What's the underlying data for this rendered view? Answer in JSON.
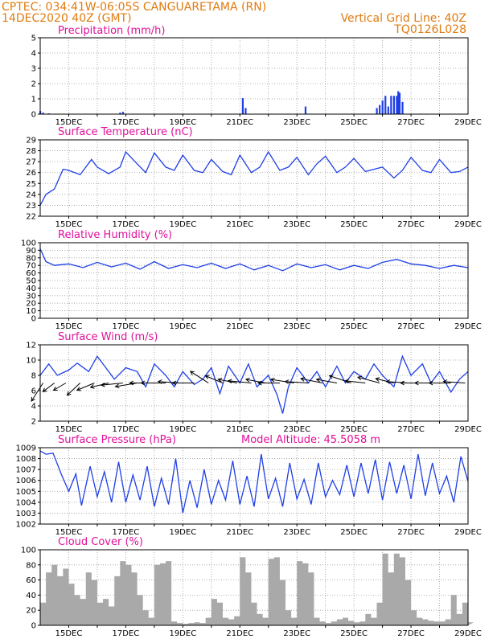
{
  "header": {
    "line1": "CPTEC:   034:41W-06:05S   CANGUARETAMA (RN)",
    "line2": "14DEC2020 40Z (GMT)",
    "grid_note": "Vertical Grid Line: 40Z",
    "code": "TQ0126L028"
  },
  "x_ticks": [
    "15DEC",
    "17DEC",
    "19DEC",
    "21DEC",
    "23DEC",
    "25DEC",
    "27DEC",
    "29DEC"
  ],
  "colors": {
    "series": "#1f3fe6",
    "cloud": "#a9a9a9",
    "title": "#e0109a",
    "header": "#e07b10"
  },
  "chart_data": [
    {
      "id": "precip",
      "type": "bar",
      "title": "Precipitation (mm/h)",
      "ylim": [
        0,
        5
      ],
      "yticks": [
        "0",
        "1",
        "2",
        "3",
        "4",
        "5"
      ],
      "x": [
        14.0,
        14.1,
        14.3,
        16.8,
        16.9,
        21.1,
        21.2,
        23.3,
        25.8,
        25.9,
        26.0,
        26.1,
        26.2,
        26.3,
        26.4,
        26.5,
        26.55,
        26.6,
        26.7
      ],
      "values": [
        0.2,
        0.1,
        0.05,
        0.1,
        0.15,
        1.05,
        0.4,
        0.5,
        0.4,
        0.6,
        0.9,
        1.2,
        0.5,
        1.2,
        1.2,
        1.2,
        1.5,
        1.4,
        0.8
      ]
    },
    {
      "id": "temp",
      "type": "line",
      "title": "Surface Temperature (nC)",
      "ylim": [
        22,
        29
      ],
      "yticks": [
        "22",
        "23",
        "24",
        "25",
        "26",
        "27",
        "28",
        "29"
      ],
      "x": [
        14.0,
        14.2,
        14.5,
        14.8,
        15.0,
        15.4,
        15.8,
        16.0,
        16.4,
        16.8,
        17.0,
        17.4,
        17.7,
        18.0,
        18.4,
        18.7,
        19.0,
        19.4,
        19.7,
        20.0,
        20.4,
        20.7,
        21.0,
        21.4,
        21.7,
        22.0,
        22.4,
        22.7,
        23.0,
        23.4,
        23.7,
        24.0,
        24.4,
        24.7,
        25.0,
        25.4,
        25.7,
        26.0,
        26.4,
        26.7,
        27.0,
        27.4,
        27.7,
        28.0,
        28.4,
        28.7,
        29.0
      ],
      "values": [
        23.0,
        24.0,
        24.5,
        26.3,
        26.2,
        25.8,
        27.2,
        26.5,
        25.9,
        26.5,
        27.9,
        26.8,
        26.0,
        27.8,
        26.5,
        26.2,
        27.6,
        26.2,
        26.0,
        27.2,
        26.1,
        25.8,
        27.6,
        26.0,
        26.5,
        27.9,
        26.2,
        26.5,
        27.4,
        25.8,
        26.8,
        27.5,
        26.0,
        26.5,
        27.3,
        26.1,
        26.3,
        26.5,
        25.5,
        26.2,
        27.4,
        26.2,
        26.0,
        27.2,
        26.0,
        26.1,
        26.5
      ]
    },
    {
      "id": "rh",
      "type": "line",
      "title": "Relative Humidity (%)",
      "ylim": [
        0,
        100
      ],
      "yticks": [
        "0",
        "10",
        "20",
        "30",
        "40",
        "50",
        "60",
        "70",
        "80",
        "90",
        "100"
      ],
      "x": [
        14.0,
        14.2,
        14.5,
        15.0,
        15.5,
        16.0,
        16.5,
        17.0,
        17.5,
        18.0,
        18.5,
        19.0,
        19.5,
        20.0,
        20.5,
        21.0,
        21.5,
        22.0,
        22.5,
        23.0,
        23.5,
        24.0,
        24.5,
        25.0,
        25.5,
        26.0,
        26.5,
        27.0,
        27.5,
        28.0,
        28.5,
        29.0
      ],
      "values": [
        92,
        75,
        70,
        72,
        67,
        74,
        68,
        73,
        65,
        75,
        66,
        71,
        67,
        73,
        66,
        72,
        64,
        70,
        63,
        72,
        67,
        71,
        64,
        70,
        66,
        74,
        78,
        72,
        70,
        66,
        70,
        67
      ]
    },
    {
      "id": "wind",
      "type": "line",
      "title": "Surface Wind (m/s)",
      "ylim": [
        2,
        12
      ],
      "yticks": [
        "2",
        "4",
        "6",
        "8",
        "10",
        "12"
      ],
      "x": [
        14.0,
        14.3,
        14.6,
        15.0,
        15.3,
        15.7,
        16.0,
        16.3,
        16.6,
        17.0,
        17.4,
        17.7,
        18.0,
        18.4,
        18.7,
        19.0,
        19.4,
        19.7,
        20.0,
        20.3,
        20.6,
        21.0,
        21.3,
        21.6,
        22.0,
        22.3,
        22.5,
        22.7,
        23.0,
        23.4,
        23.7,
        24.0,
        24.4,
        24.7,
        25.0,
        25.4,
        25.7,
        26.0,
        26.4,
        26.7,
        27.0,
        27.4,
        27.7,
        28.0,
        28.4,
        28.7,
        29.0
      ],
      "values": [
        8,
        9.5,
        8,
        8.7,
        9.6,
        8.5,
        10.5,
        9,
        7.5,
        9,
        8.5,
        6.5,
        9.5,
        8,
        6.5,
        8.5,
        6.8,
        7.5,
        9,
        5.6,
        9.2,
        7,
        9.5,
        6.5,
        8,
        5.5,
        3,
        6.5,
        9,
        7,
        8.5,
        6.5,
        9.2,
        7,
        8.5,
        7.5,
        9.5,
        8,
        6.5,
        10.5,
        8,
        9.5,
        7,
        8.5,
        5.8,
        7.5,
        8.5
      ],
      "vectors": [
        {
          "x": 14.1,
          "u": 1.6,
          "v": -2.5
        },
        {
          "x": 14.5,
          "u": 1.6,
          "v": -1.2
        },
        {
          "x": 14.9,
          "u": 1.7,
          "v": -1.0
        },
        {
          "x": 15.4,
          "u": 1.8,
          "v": -1.7
        },
        {
          "x": 15.9,
          "u": 2.4,
          "v": -1.0
        },
        {
          "x": 16.4,
          "u": 2.5,
          "v": -0.6
        },
        {
          "x": 16.9,
          "u": 3.0,
          "v": -0.3
        },
        {
          "x": 17.4,
          "u": 3.0,
          "v": -0.5
        },
        {
          "x": 17.9,
          "u": 3.0,
          "v": 0
        },
        {
          "x": 18.4,
          "u": 3.4,
          "v": 0
        },
        {
          "x": 18.9,
          "u": 3.0,
          "v": 0.2
        },
        {
          "x": 19.4,
          "u": 3.0,
          "v": 0
        },
        {
          "x": 19.9,
          "u": 2.5,
          "v": 1.6
        },
        {
          "x": 20.4,
          "u": 2.4,
          "v": 1.0
        },
        {
          "x": 20.9,
          "u": 2.6,
          "v": 0.5
        },
        {
          "x": 21.4,
          "u": 3.2,
          "v": 0.3
        },
        {
          "x": 21.9,
          "u": 2.7,
          "v": 0.5
        },
        {
          "x": 22.4,
          "u": 3.0,
          "v": 0
        },
        {
          "x": 22.9,
          "u": 3.2,
          "v": 0.5
        },
        {
          "x": 23.4,
          "u": 3.2,
          "v": 0.2
        },
        {
          "x": 23.9,
          "u": 3.0,
          "v": 0.6
        },
        {
          "x": 24.4,
          "u": 2.8,
          "v": 0.5
        },
        {
          "x": 24.9,
          "u": 3.0,
          "v": 1.0
        },
        {
          "x": 25.4,
          "u": 2.8,
          "v": 0.3
        },
        {
          "x": 25.9,
          "u": 3.0,
          "v": 0.8
        },
        {
          "x": 26.4,
          "u": 2.5,
          "v": 0.6
        },
        {
          "x": 26.9,
          "u": 3.0,
          "v": 0.2
        },
        {
          "x": 27.4,
          "u": 3.0,
          "v": 0
        },
        {
          "x": 27.9,
          "u": 3.0,
          "v": 0
        },
        {
          "x": 28.4,
          "u": 3.0,
          "v": 0
        },
        {
          "x": 28.9,
          "u": 3.0,
          "v": 0.2
        }
      ]
    },
    {
      "id": "pressure",
      "type": "line",
      "title": "Surface Pressure (hPa)",
      "annotation": "Model Altitude: 45.5058 m",
      "ylim": [
        1002,
        1009
      ],
      "yticks": [
        "1002",
        "1003",
        "1004",
        "1005",
        "1006",
        "1007",
        "1008",
        "1009"
      ],
      "x": [
        14.0,
        14.2,
        14.45,
        14.75,
        15.0,
        15.25,
        15.45,
        15.75,
        16.0,
        16.25,
        16.5,
        16.75,
        17.0,
        17.25,
        17.5,
        17.75,
        18.0,
        18.25,
        18.5,
        18.75,
        19.0,
        19.25,
        19.5,
        19.75,
        20.0,
        20.25,
        20.5,
        20.75,
        21.0,
        21.25,
        21.5,
        21.75,
        22.0,
        22.25,
        22.5,
        22.75,
        23.0,
        23.25,
        23.5,
        23.75,
        24.0,
        24.25,
        24.5,
        24.75,
        25.0,
        25.25,
        25.5,
        25.75,
        26.0,
        26.25,
        26.5,
        26.75,
        27.0,
        27.25,
        27.5,
        27.75,
        28.0,
        28.25,
        28.5,
        28.75,
        29.0
      ],
      "values": [
        1008.7,
        1008.4,
        1008.5,
        1006.5,
        1005.0,
        1006.6,
        1003.7,
        1007.3,
        1004.5,
        1006.8,
        1004.0,
        1007.7,
        1004.0,
        1006.5,
        1004.2,
        1007.3,
        1003.6,
        1006.2,
        1003.8,
        1008.0,
        1003.0,
        1006.0,
        1003.5,
        1007.0,
        1003.8,
        1006.0,
        1004.2,
        1007.8,
        1003.8,
        1006.4,
        1003.6,
        1008.4,
        1004.3,
        1006.2,
        1003.6,
        1007.6,
        1004.3,
        1006.1,
        1003.8,
        1007.6,
        1004.5,
        1006.0,
        1004.7,
        1007.4,
        1004.5,
        1007.6,
        1004.8,
        1007.9,
        1004.2,
        1007.7,
        1004.8,
        1007.4,
        1004.3,
        1008.4,
        1004.6,
        1007.6,
        1004.8,
        1006.4,
        1004.0,
        1008.2,
        1005.9
      ]
    },
    {
      "id": "cloud",
      "type": "area",
      "title": "Cloud Cover (%)",
      "ylim": [
        0,
        100
      ],
      "yticks": [
        "0",
        "20",
        "40",
        "60",
        "80",
        "100"
      ],
      "x": [
        14.0,
        14.2,
        14.4,
        14.6,
        14.8,
        15.0,
        15.2,
        15.4,
        15.6,
        15.8,
        16.0,
        16.2,
        16.4,
        16.6,
        16.8,
        17.0,
        17.2,
        17.4,
        17.6,
        17.8,
        18.0,
        18.2,
        18.4,
        18.6,
        18.8,
        19.0,
        19.2,
        19.4,
        19.6,
        19.8,
        20.0,
        20.2,
        20.4,
        20.6,
        20.8,
        21.0,
        21.2,
        21.4,
        21.6,
        21.8,
        22.0,
        22.2,
        22.4,
        22.6,
        22.8,
        23.0,
        23.2,
        23.4,
        23.6,
        23.8,
        24.0,
        24.2,
        24.4,
        24.6,
        24.8,
        25.0,
        25.2,
        25.4,
        25.6,
        25.8,
        26.0,
        26.2,
        26.4,
        26.6,
        26.8,
        27.0,
        27.2,
        27.4,
        27.6,
        27.8,
        28.0,
        28.2,
        28.4,
        28.6,
        28.8,
        29.0
      ],
      "values": [
        30,
        70,
        80,
        65,
        75,
        55,
        40,
        35,
        70,
        60,
        30,
        35,
        25,
        65,
        85,
        80,
        70,
        40,
        20,
        10,
        80,
        82,
        85,
        5,
        3,
        2,
        3,
        4,
        3,
        10,
        35,
        30,
        10,
        8,
        12,
        90,
        70,
        30,
        15,
        10,
        88,
        90,
        60,
        20,
        10,
        85,
        82,
        70,
        10,
        5,
        3,
        5,
        8,
        10,
        6,
        4,
        5,
        15,
        10,
        30,
        95,
        70,
        95,
        90,
        60,
        20,
        10,
        8,
        6,
        5,
        5,
        8,
        40,
        15,
        30,
        4
      ]
    }
  ]
}
